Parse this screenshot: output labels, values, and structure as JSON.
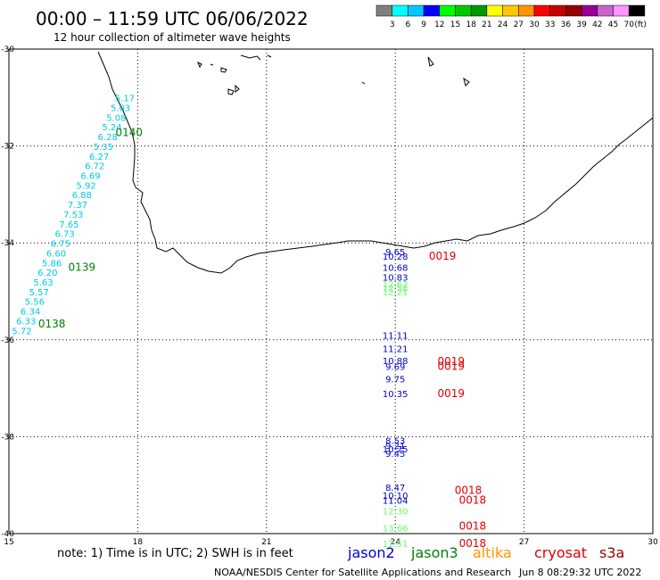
{
  "header": {
    "title": "00:00 – 11:59 UTC 06/06/2022",
    "subtitle": "12 hour collection of altimeter wave heights"
  },
  "colorbar": {
    "unit": "(ft)",
    "swatches": [
      "#808080",
      "#00ffff",
      "#00c8ff",
      "#0000ff",
      "#00ff00",
      "#00c800",
      "#009600",
      "#ffff00",
      "#ffc800",
      "#ff9600",
      "#ff0000",
      "#c80000",
      "#960000",
      "#960096",
      "#c864c8",
      "#ff96ff",
      "#000000"
    ],
    "labels": [
      "3",
      "6",
      "9",
      "12",
      "15",
      "18",
      "21",
      "24",
      "27",
      "30",
      "33",
      "36",
      "39",
      "42",
      "45",
      "70"
    ]
  },
  "axes": {
    "x_ticks": [
      "15",
      "18",
      "21",
      "24",
      "27",
      "30"
    ],
    "y_ticks": [
      "-30",
      "-32",
      "-34",
      "-36",
      "-38",
      "-40"
    ],
    "lon_range": [
      15,
      30
    ],
    "lat_range": [
      -40,
      -30
    ],
    "grid": "dotted"
  },
  "footer": {
    "note": "note:  1) Time is in UTC; 2) SWH is in feet",
    "credit": "NOAA/NESDIS Center for Satellite Applications and Research",
    "timestamp": "Jun  8 08:29:32 UTC 2022"
  },
  "legend": [
    {
      "name": "jason2",
      "color": "#0000cc"
    },
    {
      "name": "jason3",
      "color": "#008000"
    },
    {
      "name": "altika",
      "color": "#ff9600"
    },
    {
      "name": "cryosat",
      "color": "#dd0000"
    },
    {
      "name": "s3a",
      "color": "#990000"
    }
  ],
  "colors": {
    "cyan": "#00c8e6",
    "blue": "#0000cc",
    "green": "#008000",
    "lightgreen": "#66ff66",
    "red": "#dd0000"
  },
  "chart_data": {
    "type": "scatter",
    "series": [
      {
        "name": "jason2",
        "color": "#00c8e6",
        "points": [
          {
            "lon": 17.7,
            "lat": -31.08,
            "v": "5.17"
          },
          {
            "lon": 17.6,
            "lat": -31.28,
            "v": "5.03"
          },
          {
            "lon": 17.5,
            "lat": -31.48,
            "v": "5.08"
          },
          {
            "lon": 17.4,
            "lat": -31.68,
            "v": "5.24"
          },
          {
            "lon": 17.3,
            "lat": -31.88,
            "v": "6.28"
          },
          {
            "lon": 17.2,
            "lat": -32.08,
            "v": "5.35"
          },
          {
            "lon": 17.1,
            "lat": -32.28,
            "v": "6.27"
          },
          {
            "lon": 17.0,
            "lat": -32.48,
            "v": "6.72"
          },
          {
            "lon": 16.9,
            "lat": -32.68,
            "v": "6.69"
          },
          {
            "lon": 16.8,
            "lat": -32.88,
            "v": "5.92"
          },
          {
            "lon": 16.7,
            "lat": -33.08,
            "v": "6.88"
          },
          {
            "lon": 16.6,
            "lat": -33.28,
            "v": "7.37"
          },
          {
            "lon": 16.5,
            "lat": -33.48,
            "v": "7.53"
          },
          {
            "lon": 16.4,
            "lat": -33.68,
            "v": "7.65"
          },
          {
            "lon": 16.3,
            "lat": -33.88,
            "v": "6.73"
          },
          {
            "lon": 16.2,
            "lat": -34.08,
            "v": "6.75"
          },
          {
            "lon": 16.1,
            "lat": -34.28,
            "v": "6.60"
          },
          {
            "lon": 16.0,
            "lat": -34.48,
            "v": "5.86"
          },
          {
            "lon": 15.9,
            "lat": -34.68,
            "v": "6.20"
          },
          {
            "lon": 15.8,
            "lat": -34.88,
            "v": "5.63"
          },
          {
            "lon": 15.7,
            "lat": -35.08,
            "v": "5.57"
          },
          {
            "lon": 15.6,
            "lat": -35.28,
            "v": "5.56"
          },
          {
            "lon": 15.5,
            "lat": -35.48,
            "v": "6.34"
          },
          {
            "lon": 15.4,
            "lat": -35.68,
            "v": "6.33"
          },
          {
            "lon": 15.3,
            "lat": -35.88,
            "v": "5.72"
          }
        ]
      },
      {
        "name": "jason2",
        "color": "#0000cc",
        "points": [
          {
            "lon": 24.0,
            "lat": -34.25,
            "v": "9.65"
          },
          {
            "lon": 24.0,
            "lat": -34.35,
            "v": "10.28"
          },
          {
            "lon": 24.0,
            "lat": -34.58,
            "v": "10.68"
          },
          {
            "lon": 24.0,
            "lat": -34.78,
            "v": "10.83"
          },
          {
            "lon": 24.0,
            "lat": -35.98,
            "v": "11.11"
          },
          {
            "lon": 24.0,
            "lat": -36.25,
            "v": "11.21"
          },
          {
            "lon": 24.0,
            "lat": -36.5,
            "v": "10.88"
          },
          {
            "lon": 24.0,
            "lat": -36.62,
            "v": "9.69"
          },
          {
            "lon": 24.0,
            "lat": -36.88,
            "v": "9.75"
          },
          {
            "lon": 24.0,
            "lat": -37.18,
            "v": "10.35"
          },
          {
            "lon": 24.0,
            "lat": -38.15,
            "v": "8.53"
          },
          {
            "lon": 24.0,
            "lat": -38.25,
            "v": "9.21"
          },
          {
            "lon": 24.0,
            "lat": -38.32,
            "v": "10.75"
          },
          {
            "lon": 24.0,
            "lat": -38.42,
            "v": "9.45"
          },
          {
            "lon": 24.0,
            "lat": -39.12,
            "v": "8.47"
          },
          {
            "lon": 24.0,
            "lat": -39.28,
            "v": "10.10"
          },
          {
            "lon": 24.0,
            "lat": -39.38,
            "v": "11.04"
          }
        ]
      },
      {
        "name": "jason3",
        "color": "#66ff66",
        "points": [
          {
            "lon": 24.0,
            "lat": -34.92,
            "v": "12.62"
          },
          {
            "lon": 24.0,
            "lat": -35.0,
            "v": "12.58"
          },
          {
            "lon": 24.0,
            "lat": -35.08,
            "v": "12.21"
          },
          {
            "lon": 24.0,
            "lat": -39.6,
            "v": "12.30"
          },
          {
            "lon": 24.0,
            "lat": -39.95,
            "v": "13.66"
          },
          {
            "lon": 24.0,
            "lat": -40.28,
            "v": "12.51"
          }
        ]
      }
    ],
    "track_labels": [
      {
        "lon": 17.8,
        "lat": -31.8,
        "text": "0140",
        "color": "#008000"
      },
      {
        "lon": 16.7,
        "lat": -34.58,
        "text": "0139",
        "color": "#008000"
      },
      {
        "lon": 16.0,
        "lat": -35.75,
        "text": "0138",
        "color": "#008000"
      },
      {
        "lon": 25.1,
        "lat": -34.35,
        "text": "0019",
        "color": "#dd0000"
      },
      {
        "lon": 25.3,
        "lat": -36.52,
        "text": "0019",
        "color": "#dd0000"
      },
      {
        "lon": 25.3,
        "lat": -36.62,
        "text": "0019",
        "color": "#dd0000"
      },
      {
        "lon": 25.3,
        "lat": -37.18,
        "text": "0019",
        "color": "#dd0000"
      },
      {
        "lon": 25.7,
        "lat": -39.18,
        "text": "0018",
        "color": "#dd0000"
      },
      {
        "lon": 25.8,
        "lat": -39.38,
        "text": "0018",
        "color": "#dd0000"
      },
      {
        "lon": 25.8,
        "lat": -39.92,
        "text": "0018",
        "color": "#dd0000"
      },
      {
        "lon": 25.8,
        "lat": -40.28,
        "text": "0018",
        "color": "#dd0000"
      }
    ]
  }
}
